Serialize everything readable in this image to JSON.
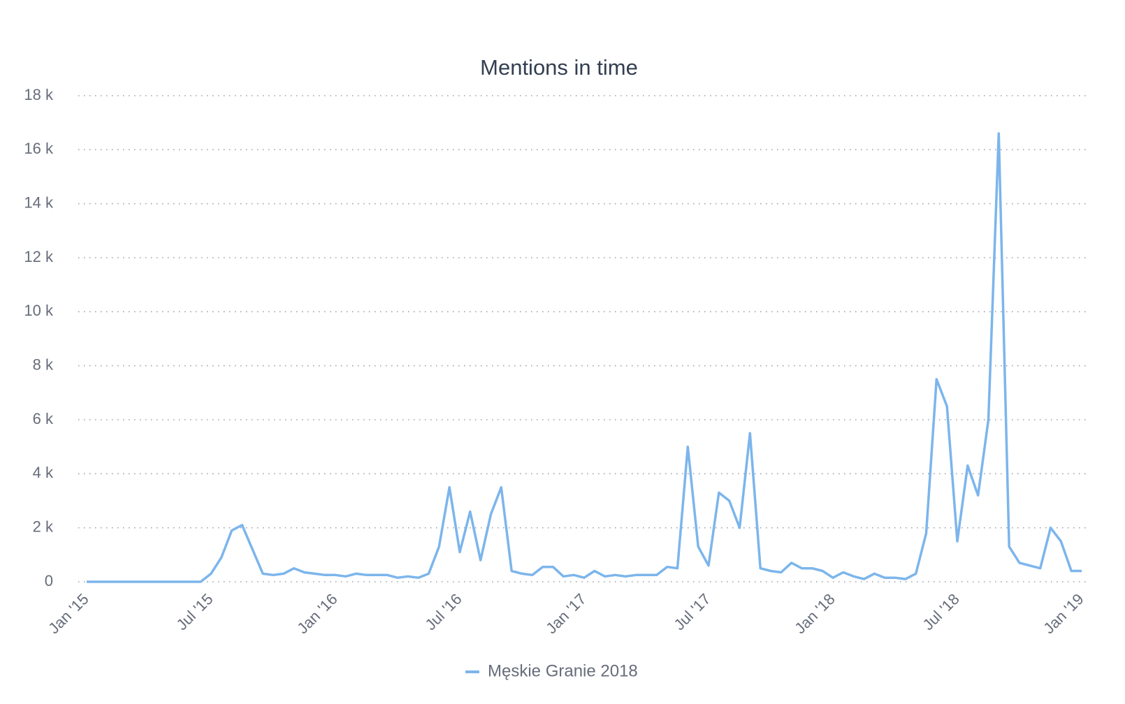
{
  "chart_data": {
    "type": "line",
    "title": "Mentions in time",
    "categories": [
      "Jan '15",
      null,
      null,
      null,
      null,
      null,
      null,
      null,
      null,
      null,
      null,
      null,
      "Jul '15",
      null,
      null,
      null,
      null,
      null,
      null,
      null,
      null,
      null,
      null,
      null,
      "Jan '16",
      null,
      null,
      null,
      null,
      null,
      null,
      null,
      null,
      null,
      null,
      null,
      "Jul '16",
      null,
      null,
      null,
      null,
      null,
      null,
      null,
      null,
      null,
      null,
      null,
      "Jan '17",
      null,
      null,
      null,
      null,
      null,
      null,
      null,
      null,
      null,
      null,
      null,
      "Jul '17",
      null,
      null,
      null,
      null,
      null,
      null,
      null,
      null,
      null,
      null,
      null,
      "Jan '18",
      null,
      null,
      null,
      null,
      null,
      null,
      null,
      null,
      null,
      null,
      null,
      "Jul '18",
      null,
      null,
      null,
      null,
      null,
      null,
      null,
      null,
      null,
      null,
      null,
      "Jan '19"
    ],
    "series": [
      {
        "name": "Męskie Granie 2018",
        "color": "#7cb5ec",
        "values": [
          0,
          0,
          0,
          0,
          0,
          0,
          0,
          0,
          0,
          0,
          0,
          0,
          300,
          900,
          1900,
          2100,
          1200,
          300,
          250,
          300,
          500,
          350,
          300,
          250,
          250,
          200,
          300,
          250,
          250,
          250,
          150,
          200,
          150,
          300,
          1300,
          3500,
          1100,
          2600,
          800,
          2500,
          3500,
          400,
          300,
          250,
          550,
          550,
          200,
          250,
          150,
          400,
          200,
          250,
          200,
          250,
          250,
          250,
          550,
          500,
          5000,
          1300,
          600,
          3300,
          3000,
          2000,
          5500,
          500,
          400,
          350,
          700,
          500,
          500,
          400,
          150,
          350,
          200,
          100,
          300,
          150,
          150,
          100,
          300,
          1800,
          7500,
          6500,
          1500,
          4300,
          3200,
          6000,
          16600,
          1300,
          700,
          600,
          500,
          2000,
          1500,
          400,
          400
        ]
      }
    ],
    "ylim": [
      0,
      18000
    ],
    "yticks": [
      0,
      {
        "value": 2000,
        "label": "2 k"
      },
      {
        "value": 4000,
        "label": "4 k"
      },
      {
        "value": 6000,
        "label": "6 k"
      },
      {
        "value": 8000,
        "label": "8 k"
      },
      {
        "value": 10000,
        "label": "10 k"
      },
      {
        "value": 12000,
        "label": "12 k"
      },
      {
        "value": 14000,
        "label": "14 k"
      },
      {
        "value": 16000,
        "label": "16 k"
      },
      {
        "value": 18000,
        "label": "18 k"
      }
    ],
    "grid": true
  }
}
